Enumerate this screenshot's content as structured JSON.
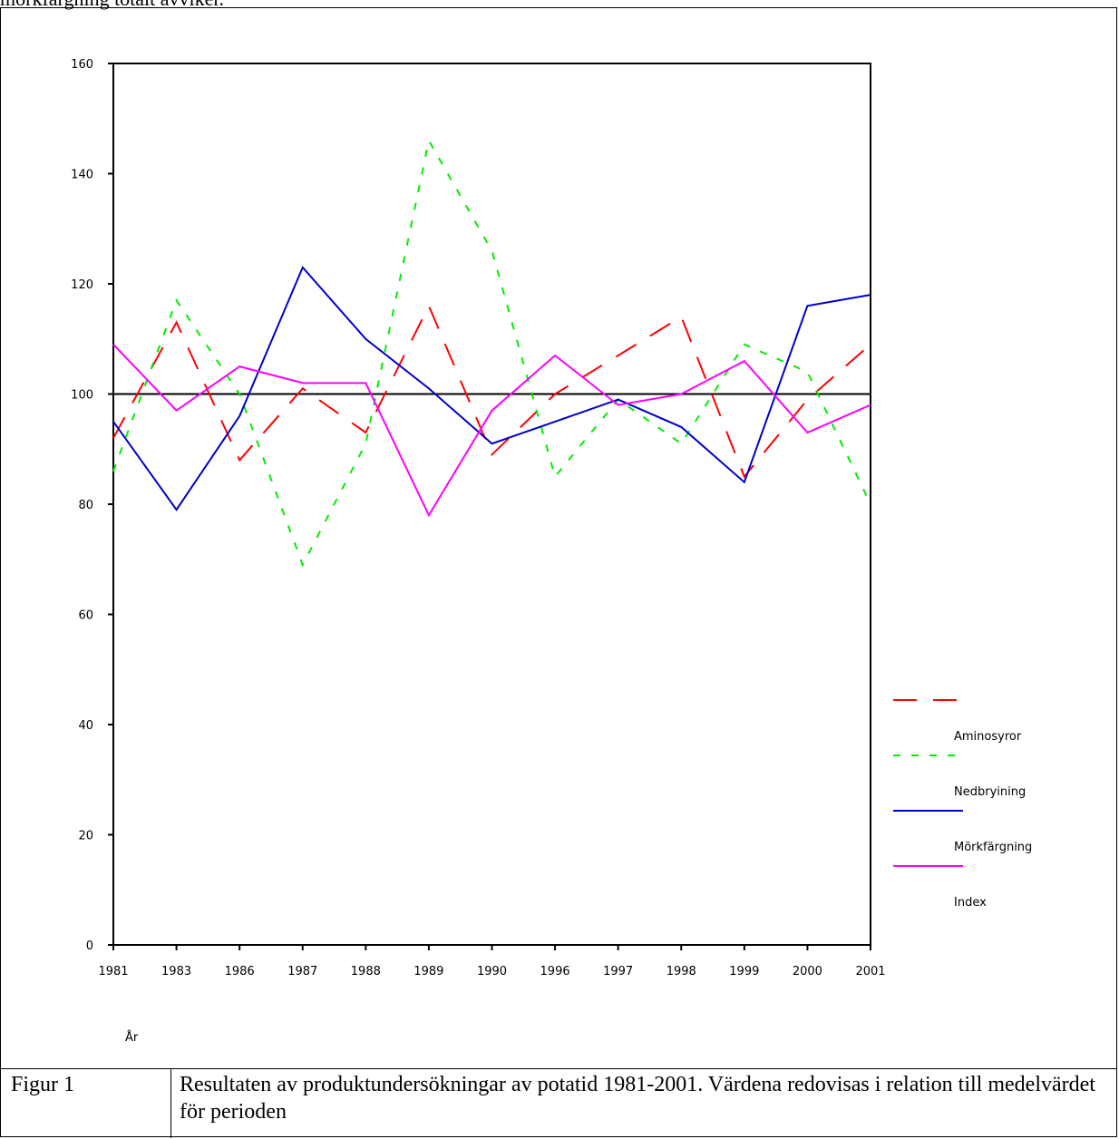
{
  "top_text": "mörkfärgning totalt avviker.",
  "caption": {
    "label": "Figur 1",
    "text": "Resultaten av produktundersökningar av potatid 1981-2001. Värdena redovisas i relation till medelvärdet för perioden"
  },
  "chart_data": {
    "type": "line",
    "title": "",
    "xlabel": "År",
    "ylabel": "",
    "ylim": [
      0,
      160
    ],
    "yticks": [
      0,
      20,
      40,
      60,
      80,
      100,
      120,
      140,
      160
    ],
    "reference_line": 100,
    "grid": false,
    "legend_position": "right",
    "categories": [
      "1981",
      "1983",
      "1986",
      "1987",
      "1988",
      "1989",
      "1990",
      "1996",
      "1997",
      "1998",
      "1999",
      "2000",
      "2001"
    ],
    "series": [
      {
        "name": "Aminosyror",
        "color": "#ff0000",
        "style": "dashed",
        "values": [
          92,
          113,
          88,
          101,
          93,
          116,
          89,
          100,
          107,
          114,
          85,
          99,
          109
        ]
      },
      {
        "name": "Nedbryining",
        "color": "#00ee00",
        "style": "dotted",
        "values": [
          86,
          117,
          100,
          69,
          91,
          146,
          126,
          85,
          99,
          91,
          109,
          104,
          80
        ]
      },
      {
        "name": "Mörkfärgning",
        "color": "#0000cc",
        "style": "solid",
        "values": [
          95,
          79,
          96,
          123,
          110,
          101,
          91,
          95,
          99,
          94,
          84,
          116,
          118
        ]
      },
      {
        "name": "Index",
        "color": "#ff00ff",
        "style": "solid",
        "values": [
          109,
          97,
          105,
          102,
          102,
          78,
          97,
          107,
          98,
          100,
          106,
          93,
          98
        ]
      }
    ]
  }
}
